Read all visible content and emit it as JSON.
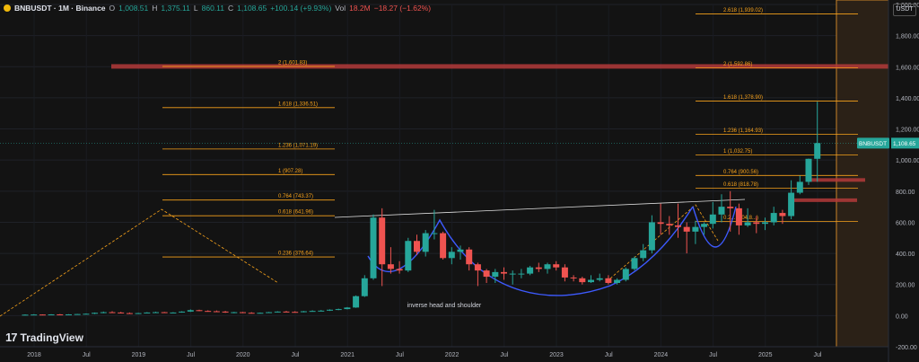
{
  "header": {
    "symbol": "BNBUSDT · 1M · Binance",
    "open_label": "O",
    "open": "1,008.51",
    "high_label": "H",
    "high": "1,375.11",
    "low_label": "L",
    "low": "860.11",
    "close_label": "C",
    "close": "1,108.65",
    "change": "+100.14 (+9.93%)",
    "vol_label": "Vol",
    "vol": "18.2M",
    "vol_change": "−18.27 (−1.62%)"
  },
  "currency_button": "USDT",
  "branding": {
    "name": "TradingView",
    "icon": "tradingview-logo-icon"
  },
  "colors": {
    "up": "#26a69a",
    "down": "#ef5350",
    "fib": "#f7a21b",
    "curve": "#3d5afe",
    "zone": "#b33a3a",
    "neckline": "#e0e0e0"
  },
  "chart_data": {
    "type": "candlestick",
    "symbol": "BNBUSDT",
    "interval": "1M",
    "x_ticks": [
      "2018",
      "Jul",
      "2019",
      "Jul",
      "2020",
      "Jul",
      "2021",
      "Jul",
      "2022",
      "Jul",
      "2023",
      "Jul",
      "2024",
      "Jul",
      "2025",
      "Jul"
    ],
    "y_ticks": [
      "2,000.00",
      "1,800.00",
      "1,600.00",
      "1,400.00",
      "1,200.00",
      "1,000.00",
      "800.00",
      "600.00",
      "400.00",
      "200.00",
      "0.00",
      "-200.00"
    ],
    "ylim": [
      -200,
      2000
    ],
    "price_tag": {
      "symbol": "BNBUSDT",
      "value": "1,108.65"
    },
    "candles": [
      [
        0,
        5,
        8,
        3,
        6
      ],
      [
        1,
        6,
        9,
        4,
        7
      ],
      [
        2,
        7,
        8,
        5,
        6
      ],
      [
        3,
        6,
        9,
        4,
        8
      ],
      [
        4,
        8,
        10,
        6,
        7
      ],
      [
        5,
        7,
        9,
        5,
        8
      ],
      [
        6,
        8,
        11,
        7,
        10
      ],
      [
        7,
        10,
        14,
        8,
        12
      ],
      [
        8,
        12,
        20,
        10,
        18
      ],
      [
        9,
        18,
        26,
        15,
        22
      ],
      [
        10,
        22,
        28,
        18,
        20
      ],
      [
        11,
        20,
        24,
        14,
        16
      ],
      [
        12,
        16,
        20,
        12,
        14
      ],
      [
        13,
        14,
        18,
        12,
        16
      ],
      [
        14,
        16,
        22,
        15,
        20
      ],
      [
        15,
        20,
        25,
        18,
        22
      ],
      [
        16,
        22,
        24,
        17,
        18
      ],
      [
        17,
        18,
        22,
        16,
        20
      ],
      [
        18,
        20,
        28,
        19,
        26
      ],
      [
        19,
        26,
        40,
        24,
        35
      ],
      [
        20,
        35,
        38,
        28,
        30
      ],
      [
        21,
        30,
        34,
        25,
        28
      ],
      [
        22,
        28,
        33,
        24,
        26
      ],
      [
        23,
        26,
        30,
        18,
        20
      ],
      [
        24,
        20,
        24,
        15,
        22
      ],
      [
        25,
        22,
        24,
        16,
        18
      ],
      [
        26,
        18,
        22,
        14,
        16
      ],
      [
        27,
        16,
        20,
        14,
        18
      ],
      [
        28,
        18,
        24,
        17,
        22
      ],
      [
        29,
        22,
        28,
        20,
        26
      ],
      [
        30,
        26,
        30,
        22,
        24
      ],
      [
        31,
        24,
        28,
        20,
        22
      ],
      [
        32,
        22,
        30,
        21,
        28
      ],
      [
        33,
        28,
        34,
        26,
        30
      ],
      [
        34,
        30,
        36,
        28,
        32
      ],
      [
        35,
        32,
        40,
        30,
        38
      ],
      [
        36,
        38,
        45,
        35,
        42
      ],
      [
        37,
        42,
        55,
        40,
        52
      ],
      [
        38,
        52,
        130,
        50,
        125
      ],
      [
        39,
        125,
        260,
        120,
        240
      ],
      [
        40,
        240,
        650,
        230,
        630
      ],
      [
        41,
        630,
        690,
        190,
        330
      ],
      [
        42,
        330,
        440,
        270,
        300
      ],
      [
        43,
        300,
        350,
        270,
        290
      ],
      [
        44,
        290,
        500,
        280,
        480
      ],
      [
        45,
        480,
        520,
        390,
        410
      ],
      [
        46,
        410,
        550,
        380,
        530
      ],
      [
        47,
        530,
        680,
        490,
        530
      ],
      [
        48,
        530,
        540,
        360,
        370
      ],
      [
        49,
        370,
        440,
        330,
        410
      ],
      [
        50,
        410,
        450,
        360,
        425
      ],
      [
        51,
        425,
        440,
        290,
        330
      ],
      [
        52,
        330,
        340,
        190,
        290
      ],
      [
        53,
        290,
        300,
        210,
        250
      ],
      [
        54,
        250,
        300,
        210,
        280
      ],
      [
        55,
        280,
        310,
        230,
        270
      ],
      [
        56,
        270,
        290,
        200,
        270
      ],
      [
        57,
        270,
        300,
        240,
        270
      ],
      [
        58,
        270,
        320,
        260,
        310
      ],
      [
        59,
        310,
        340,
        280,
        300
      ],
      [
        60,
        300,
        340,
        270,
        330
      ],
      [
        61,
        330,
        350,
        290,
        310
      ],
      [
        62,
        310,
        330,
        220,
        245
      ],
      [
        63,
        245,
        260,
        220,
        240
      ],
      [
        64,
        240,
        250,
        200,
        215
      ],
      [
        65,
        215,
        260,
        210,
        230
      ],
      [
        66,
        230,
        270,
        220,
        240
      ],
      [
        67,
        240,
        260,
        200,
        210
      ],
      [
        68,
        210,
        240,
        200,
        230
      ],
      [
        69,
        230,
        310,
        220,
        300
      ],
      [
        70,
        300,
        380,
        290,
        370
      ],
      [
        71,
        370,
        460,
        350,
        420
      ],
      [
        72,
        420,
        645,
        400,
        600
      ],
      [
        73,
        600,
        720,
        520,
        590
      ],
      [
        74,
        590,
        640,
        520,
        580
      ],
      [
        75,
        580,
        720,
        500,
        570
      ],
      [
        76,
        570,
        600,
        400,
        540
      ],
      [
        77,
        540,
        610,
        460,
        570
      ],
      [
        78,
        570,
        600,
        520,
        590
      ],
      [
        79,
        590,
        730,
        560,
        650
      ],
      [
        80,
        650,
        780,
        600,
        700
      ],
      [
        81,
        700,
        800,
        540,
        690
      ],
      [
        82,
        690,
        720,
        520,
        580
      ],
      [
        83,
        580,
        690,
        570,
        600
      ],
      [
        84,
        600,
        640,
        530,
        590
      ],
      [
        85,
        590,
        630,
        550,
        600
      ],
      [
        86,
        600,
        700,
        580,
        660
      ],
      [
        87,
        660,
        680,
        590,
        640
      ],
      [
        88,
        640,
        870,
        620,
        790
      ],
      [
        89,
        790,
        900,
        780,
        860
      ],
      [
        90,
        860,
        1010,
        840,
        1008
      ],
      [
        91,
        1008,
        1375,
        860,
        1109
      ]
    ],
    "fib_levels": [
      {
        "label": "2.618 (2,053.06)",
        "value": 2053
      },
      {
        "label": "2 (1,601.83)",
        "value": 1602
      },
      {
        "label": "1.618 (1,336.51)",
        "value": 1337
      },
      {
        "label": "1.236 (1,071.19)",
        "value": 1071
      },
      {
        "label": "1 (907.28)",
        "value": 907
      },
      {
        "label": "0.764 (743.37)",
        "value": 743
      },
      {
        "label": "0.618 (641.96)",
        "value": 642
      },
      {
        "label": "0.236 (376.64)",
        "value": 377
      },
      {
        "label": "2.618 (1,939.02)",
        "value": 1939
      },
      {
        "label": "2 (1,592.86)",
        "value": 1593
      },
      {
        "label": "1.618 (1,378.90)",
        "value": 1379
      },
      {
        "label": "1.236 (1,164.93)",
        "value": 1165
      },
      {
        "label": "1 (1,032.75)",
        "value": 1033
      },
      {
        "label": "0.764 (900.56)",
        "value": 901
      },
      {
        "label": "0.618 (818.78)",
        "value": 819
      },
      {
        "label": "0.2... (604.8...)",
        "value": 605
      }
    ],
    "annotations": [
      {
        "text": "inverse head and shoulder"
      }
    ]
  }
}
